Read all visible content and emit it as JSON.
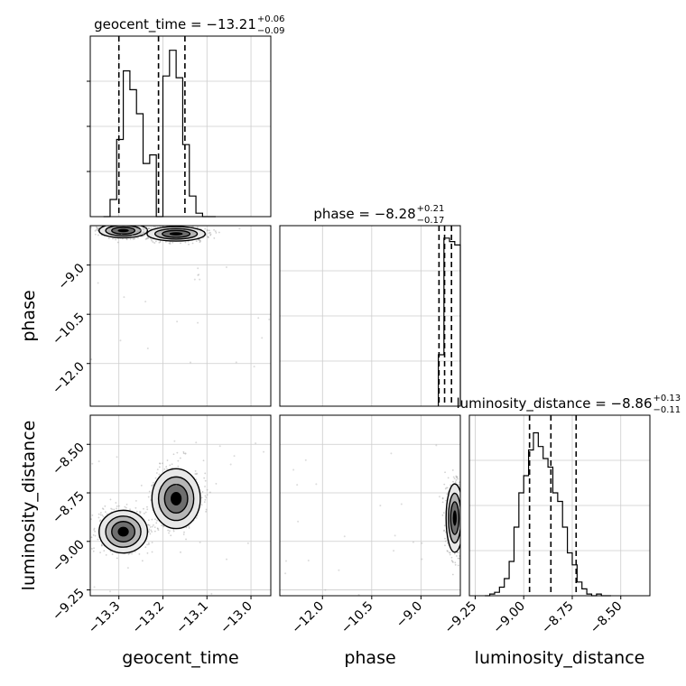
{
  "chart_data": {
    "type": "corner",
    "parameters": [
      "geocent_time",
      "phase",
      "luminosity_distance"
    ],
    "axis_labels": {
      "x": [
        "geocent_time",
        "phase",
        "luminosity_distance"
      ],
      "y": [
        "phase",
        "luminosity_distance"
      ]
    },
    "titles": [
      {
        "name": "geocent_time",
        "median": "−13.21",
        "plus": "+0.06",
        "minus": "−0.09"
      },
      {
        "name": "phase",
        "median": "−8.28",
        "plus": "+0.21",
        "minus": "−0.17"
      },
      {
        "name": "luminosity_distance",
        "median": "−8.86",
        "plus": "+0.13",
        "minus": "−0.11"
      }
    ],
    "ranges": {
      "geocent_time": [
        -13.365,
        -12.955
      ],
      "phase": [
        -13.3,
        -7.8
      ],
      "luminosity_distance": [
        -9.28,
        -8.35
      ]
    },
    "ticks": {
      "geocent_time": [
        "−13.3",
        "−13.2",
        "−13.1",
        "−13.0"
      ],
      "phase": [
        "−12.0",
        "−10.5",
        "−9.0"
      ],
      "luminosity_distance": [
        "−9.25",
        "−9.00",
        "−8.75",
        "−8.50"
      ]
    },
    "quantiles": {
      "geocent_time": [
        -13.3,
        -13.21,
        -13.15
      ],
      "phase": [
        -8.45,
        -8.28,
        -8.07
      ],
      "luminosity_distance": [
        -8.97,
        -8.86,
        -8.73
      ]
    },
    "histograms": {
      "geocent_time": {
        "bins": [
          -13.335,
          -13.32,
          -13.305,
          -13.29,
          -13.275,
          -13.26,
          -13.245,
          -13.23,
          -13.215,
          -13.2,
          -13.185,
          -13.17,
          -13.155,
          -13.14,
          -13.125,
          -13.11,
          -13.095,
          -13.08
        ],
        "counts": [
          0.0,
          0.1,
          0.45,
          0.85,
          0.74,
          0.6,
          0.31,
          0.36,
          0.0,
          0.82,
          0.97,
          0.81,
          0.42,
          0.12,
          0.02,
          0.0,
          0.0
        ]
      },
      "phase": {
        "bins": [
          -8.47,
          -8.3,
          -8.13,
          -7.97,
          -7.8
        ],
        "counts": [
          0.3,
          0.98,
          0.96,
          0.94
        ]
      },
      "luminosity_distance": {
        "bins": [
          -9.2,
          -9.175,
          -9.15,
          -9.125,
          -9.1,
          -9.075,
          -9.05,
          -9.025,
          -9.0,
          -8.975,
          -8.95,
          -8.925,
          -8.9,
          -8.875,
          -8.85,
          -8.825,
          -8.8,
          -8.775,
          -8.75,
          -8.725,
          -8.7,
          -8.675,
          -8.65,
          -8.625,
          -8.6,
          -8.575,
          -8.55
        ],
        "counts": [
          0.0,
          0.01,
          0.02,
          0.05,
          0.1,
          0.2,
          0.4,
          0.6,
          0.7,
          0.85,
          0.95,
          0.87,
          0.8,
          0.75,
          0.6,
          0.55,
          0.4,
          0.25,
          0.18,
          0.08,
          0.04,
          0.01,
          0.0,
          0.01,
          0.0,
          0.0
        ]
      }
    },
    "density_blobs": [
      {
        "pair": [
          "geocent_time",
          "phase"
        ],
        "center": [
          -13.29,
          -7.95
        ],
        "sd": [
          0.025,
          0.1
        ]
      },
      {
        "pair": [
          "geocent_time",
          "phase"
        ],
        "center": [
          -13.17,
          -8.05
        ],
        "sd": [
          0.03,
          0.1
        ]
      },
      {
        "pair": [
          "geocent_time",
          "luminosity_distance"
        ],
        "center": [
          -13.29,
          -8.95
        ],
        "sd": [
          0.025,
          0.05
        ]
      },
      {
        "pair": [
          "geocent_time",
          "luminosity_distance"
        ],
        "center": [
          -13.17,
          -8.78
        ],
        "sd": [
          0.025,
          0.07
        ]
      },
      {
        "pair": [
          "phase",
          "luminosity_distance"
        ],
        "center": [
          -7.97,
          -8.88
        ],
        "sd": [
          0.12,
          0.08
        ]
      }
    ],
    "grid": true,
    "colors": {
      "line": "#000000",
      "grid": "#cccccc",
      "scatter": "#9a9a9a"
    }
  }
}
